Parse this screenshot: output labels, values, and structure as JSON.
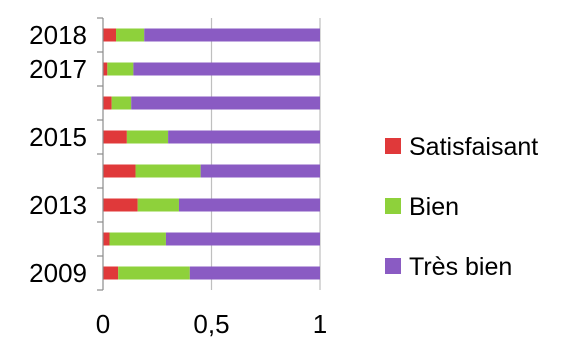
{
  "chart_data": {
    "type": "bar",
    "orientation": "horizontal",
    "stacked": true,
    "categories": [
      "2018",
      "2017",
      "",
      "2015",
      "",
      "2013",
      "",
      "2009"
    ],
    "series": [
      {
        "name": "Satisfaisant",
        "color": "#e0393a",
        "values": [
          0.06,
          0.02,
          0.04,
          0.11,
          0.15,
          0.16,
          0.03,
          0.07
        ]
      },
      {
        "name": "Bien",
        "color": "#8ed13b",
        "values": [
          0.13,
          0.12,
          0.09,
          0.19,
          0.3,
          0.19,
          0.26,
          0.33
        ]
      },
      {
        "name": "Très bien",
        "color": "#8a5bc3",
        "values": [
          0.81,
          0.86,
          0.87,
          0.7,
          0.55,
          0.65,
          0.71,
          0.6
        ]
      }
    ],
    "x_ticks": [
      "0",
      "0,5",
      "1"
    ],
    "xlim": [
      0,
      1
    ],
    "grid": true,
    "legend_position": "right"
  }
}
